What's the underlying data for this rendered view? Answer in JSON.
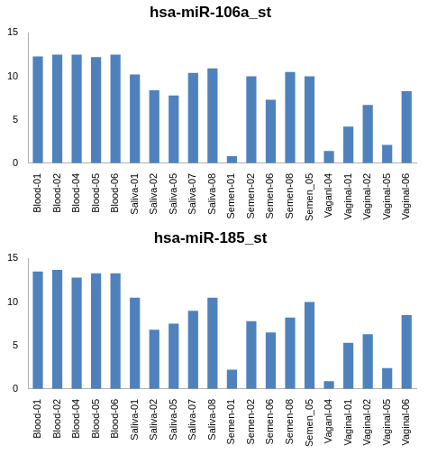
{
  "chart_data": [
    {
      "type": "bar",
      "title": "hsa-miR-106a_st",
      "categories": [
        "Blood-01",
        "Blood-02",
        "Blood-04",
        "Blood-05",
        "Blood-06",
        "Saliva-01",
        "Saliva-02",
        "Saliva-05",
        "Saliva-07",
        "Saliva-08",
        "Semen-01",
        "Semen-02",
        "Semen-06",
        "Semen-08",
        "Semen_05",
        "Vaganl-04",
        "Vaginal-01",
        "Vaginal-02",
        "Vaginal-05",
        "Vaginal-06"
      ],
      "values": [
        12.3,
        12.5,
        12.5,
        12.2,
        12.5,
        10.2,
        8.4,
        7.8,
        10.4,
        10.9,
        0.8,
        10.0,
        7.3,
        10.5,
        10.0,
        1.4,
        4.2,
        6.7,
        2.1,
        8.3
      ],
      "color": "#4f81bd",
      "ylim": [
        0,
        15
      ],
      "yticks": [
        0,
        5,
        10,
        15
      ],
      "grid": false
    },
    {
      "type": "bar",
      "title": "hsa-miR-185_st",
      "categories": [
        "Blood-01",
        "Blood-02",
        "Blood-04",
        "Blood-05",
        "Blood-06",
        "Saliva-01",
        "Saliva-02",
        "Saliva-05",
        "Saliva-07",
        "Saliva-08",
        "Semen-01",
        "Semen-02",
        "Semen-06",
        "Semen-08",
        "Semen_05",
        "Vaganl-04",
        "Vaginal-01",
        "Vaginal-02",
        "Vaginal-05",
        "Vaginal-06"
      ],
      "values": [
        13.5,
        13.7,
        12.8,
        13.3,
        13.3,
        10.5,
        6.8,
        7.5,
        9.0,
        10.5,
        2.2,
        7.8,
        6.5,
        8.2,
        10.0,
        0.9,
        5.3,
        6.3,
        2.4,
        8.5
      ],
      "color": "#4f81bd",
      "ylim": [
        0,
        15
      ],
      "yticks": [
        0,
        5,
        10,
        15
      ],
      "grid": false
    }
  ]
}
